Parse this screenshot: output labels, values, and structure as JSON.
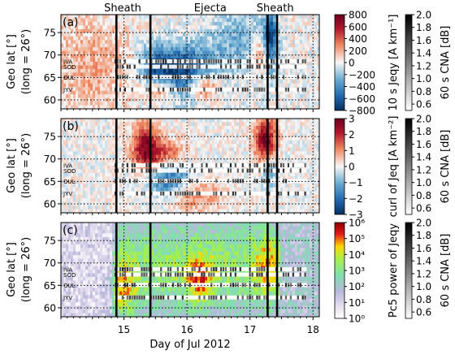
{
  "chart_data": {
    "type": "heatmap",
    "xlabel": "Day of Jul 2012",
    "x_ticks": [
      15,
      16,
      17,
      18
    ],
    "xlim": [
      14.0,
      18.1
    ],
    "ylim": [
      58,
      79
    ],
    "y_ticks": [
      60,
      65,
      70,
      75
    ],
    "event_labels": [
      {
        "text": "Sheath",
        "x": 14.98
      },
      {
        "text": "Ejecta",
        "x": 16.37
      },
      {
        "text": "Sheath",
        "x": 17.4
      }
    ],
    "event_lines": [
      14.88,
      15.42,
      17.28,
      17.43
    ],
    "station_labels": [
      "IVA",
      "SOD",
      "OUL",
      "JYV"
    ],
    "station_lats": [
      68.6,
      67.4,
      65.1,
      62.3
    ],
    "panels": [
      {
        "label": "(a)",
        "ylabel_line1": "Geo lat [°]",
        "ylabel_line2": "(long = 26°)",
        "colorbar_label": "10 s Jeqy [A km⁻¹]",
        "colorbar_ticks": [
          "800",
          "600",
          "400",
          "200",
          "0",
          "−200",
          "−400",
          "−600",
          "−800"
        ],
        "colormap": "diverging-red-blue"
      },
      {
        "label": "(b)",
        "ylabel_line1": "Geo lat [°]",
        "ylabel_line2": "(long = 26°)",
        "colorbar_label": "curl of Jeq [A km⁻²]",
        "colorbar_ticks": [
          "3",
          "2",
          "1",
          "0",
          "−1",
          "−2",
          "−3"
        ],
        "colormap": "diverging-red-blue"
      },
      {
        "label": "(c)",
        "ylabel_line1": "Geo lat [°]",
        "ylabel_line2": "(long = 26°)",
        "colorbar_label": "Pc5 power of Jeqy",
        "colorbar_ticks": [
          "10⁶",
          "10⁵",
          "10⁴",
          "10³",
          "10²",
          "10¹",
          "10⁰"
        ],
        "colormap": "rainbow-log"
      }
    ],
    "cna_colorbar": {
      "label": "60 s CNA [dB]",
      "ticks": [
        "2.0",
        "1.8",
        "1.6",
        "1.4",
        "1.2",
        "1.0",
        "0.8",
        "0.6"
      ],
      "range": [
        0.5,
        2.0
      ]
    }
  }
}
